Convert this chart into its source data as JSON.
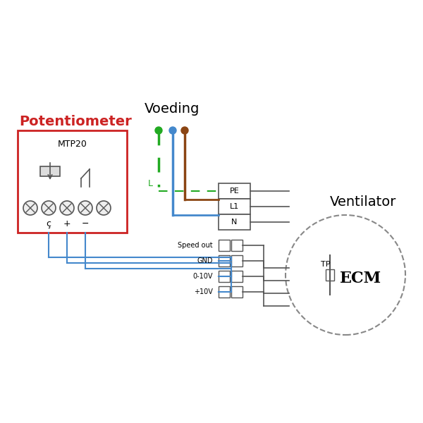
{
  "title": "",
  "bg_color": "#ffffff",
  "potentiometer_label": "Potentiometer",
  "potentiometer_box_color": "#cc2222",
  "potentiometer_model": "MTP20",
  "potentiometer_terminals": [
    "ç",
    "+",
    "−"
  ],
  "voeding_label": "Voeding",
  "ventilator_label": "Ventilator",
  "ecm_label": "ECM",
  "tp_label": "TP",
  "terminal_block_labels": [
    "PE",
    "L1",
    "N"
  ],
  "signal_labels": [
    "Speed out",
    "GND",
    "0-10V",
    "+10V"
  ],
  "wire_green": "#22aa22",
  "wire_blue": "#4488cc",
  "wire_brown": "#8B4513",
  "wire_gray": "#888888",
  "dashed_color": "#22aa22",
  "circle_dash_color": "#888888"
}
